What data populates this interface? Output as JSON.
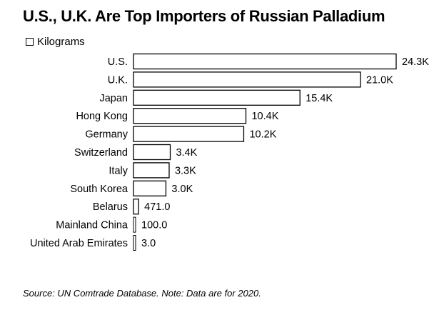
{
  "chart_data": {
    "type": "bar",
    "orientation": "horizontal",
    "title": "U.S., U.K. Are Top Importers of Russian Palladium",
    "legend": [
      "Kilograms"
    ],
    "legend_placement": "top-left",
    "categories": [
      "U.S.",
      "U.K.",
      "Japan",
      "Hong Kong",
      "Germany",
      "Switzerland",
      "Italy",
      "South Korea",
      "Belarus",
      "Mainland China",
      "United Arab Emirates"
    ],
    "series": [
      {
        "name": "Kilograms",
        "values": [
          24300,
          21000,
          15400,
          10400,
          10200,
          3400,
          3300,
          3000,
          471,
          100,
          3
        ],
        "labels": [
          "24.3K",
          "21.0K",
          "15.4K",
          "10.4K",
          "10.2K",
          "3.4K",
          "3.3K",
          "3.0K",
          "471.0",
          "100.0",
          "3.0"
        ]
      }
    ],
    "xlim": [
      0,
      24300
    ],
    "grid": false,
    "bar_fill": "#ffffff",
    "bar_stroke": "#000000",
    "source": "Source: UN Comtrade Database. Note: Data are for 2020."
  }
}
